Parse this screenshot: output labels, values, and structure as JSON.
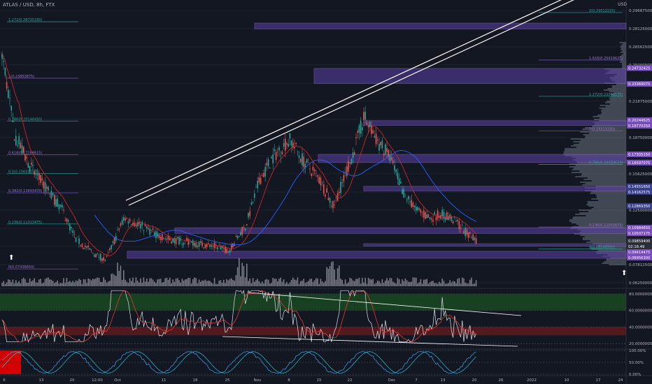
{
  "header": {
    "symbol": "ATLAS / USD, 8h, FTX",
    "currency": "USD"
  },
  "price_axis": {
    "ticks": [
      "0.29687500",
      "0.28125000",
      "0.26562500",
      "0.25000000",
      "0.23437500",
      "0.21875000",
      "0.20312500",
      "0.18750000",
      "0.17187500",
      "0.15625000",
      "0.14062500",
      "0.12500000",
      "0.10937500",
      "0.09375000",
      "0.07812500",
      "0.06250000"
    ],
    "labels": [
      {
        "text": "0.24732425",
        "color": "#7b4fbf"
      },
      {
        "text": "0.23369075",
        "color": "#7b4fbf"
      },
      {
        "text": "0.20244625",
        "color": "#7b4fbf"
      },
      {
        "text": "0.19770250",
        "color": "#7b4fbf"
      },
      {
        "text": "0.17305150",
        "color": "#7b4fbf"
      },
      {
        "text": "0.16597075",
        "color": "#7b4fbf"
      },
      {
        "text": "0.14551650",
        "color": "#3a3f8f"
      },
      {
        "text": "0.14162575",
        "color": "#3a3f8f"
      },
      {
        "text": "0.12869350",
        "color": "#3a3f8f"
      },
      {
        "text": "0.10984650",
        "color": "#7b4fbf"
      },
      {
        "text": "0.10507175",
        "color": "#7b4fbf"
      },
      {
        "text": "0.09859400",
        "color": "#2a2e39"
      },
      {
        "text": "02:16:49",
        "color": "#2a2e39"
      },
      {
        "text": "0.09414475",
        "color": "#7b4fbf"
      },
      {
        "text": "0.08956300",
        "color": "#7b4fbf"
      }
    ]
  },
  "fib_labels": [
    "1.272(0.28725180)",
    "1(0.23863875)",
    "0.786(0.20148450)",
    "0.618(0.17288615)",
    "0.5(0.15650250)",
    "0.382(0.13993470)",
    "0.236(0.11313475)",
    "0(0.07436650)",
    "2(0.29512225)",
    "1.618(0.25419625)",
    "1.272(0.22298175)",
    "1(0.19313250)",
    "0.786(0.16433630)",
    "0.236(0.11050875)",
    "0(0.09148950)"
  ],
  "rsi_axis": {
    "ticks": [
      "80.00000000",
      "60.00000000",
      "40.00000000",
      "20.00000000"
    ]
  },
  "stoch_axis": {
    "ticks": [
      "100.00%",
      "50.00%",
      "0.00%"
    ]
  },
  "time_axis": {
    "ticks": [
      "6",
      "13",
      "20",
      "12:00",
      "Oct",
      "11",
      "18",
      "25",
      "Nov",
      "8",
      "15",
      "22",
      "Dec",
      "7",
      "13",
      "20",
      "26",
      "2022",
      "10",
      "17",
      "24"
    ]
  },
  "colors": {
    "background": "#131722",
    "bull": "#26a69a",
    "bear": "#ef5350",
    "zone": "#5b3fa8",
    "zone_border": "#9575cd",
    "rsi": "#e0e3eb",
    "rsi_ma": "#e53935",
    "stoch_k": "#42a5f5",
    "stoch_d": "#26c6da",
    "ma_red": "#c62828",
    "ma_blue": "#2962ff",
    "axis_text": "#b2b5be",
    "grid": "#1e222d"
  },
  "chart_data": {
    "type": "candlestick",
    "symbol": "ATLAS / USD",
    "interval": "8h",
    "exchange": "FTX",
    "ylim": [
      0.0625,
      0.296875
    ],
    "ohlc_close_points": [
      [
        "Sep 3",
        0.265
      ],
      [
        "Sep 6",
        0.19
      ],
      [
        "Sep 10",
        0.16
      ],
      [
        "Sep 13",
        0.145
      ],
      [
        "Sep 17",
        0.125
      ],
      [
        "Sep 20",
        0.1
      ],
      [
        "Sep 24",
        0.088
      ],
      [
        "Sep 27",
        0.082
      ],
      [
        "Oct 1",
        0.118
      ],
      [
        "Oct 4",
        0.114
      ],
      [
        "Oct 8",
        0.105
      ],
      [
        "Oct 11",
        0.1
      ],
      [
        "Oct 15",
        0.098
      ],
      [
        "Oct 18",
        0.096
      ],
      [
        "Oct 22",
        0.094
      ],
      [
        "Oct 25",
        0.09
      ],
      [
        "Oct 29",
        0.112
      ],
      [
        "Nov 1",
        0.15
      ],
      [
        "Nov 4",
        0.17
      ],
      [
        "Nov 8",
        0.186
      ],
      [
        "Nov 11",
        0.168
      ],
      [
        "Nov 15",
        0.15
      ],
      [
        "Nov 18",
        0.128
      ],
      [
        "Nov 22",
        0.168
      ],
      [
        "Nov 25",
        0.205
      ],
      [
        "Nov 28",
        0.185
      ],
      [
        "Dec 1",
        0.17
      ],
      [
        "Dec 4",
        0.14
      ],
      [
        "Dec 7",
        0.125
      ],
      [
        "Dec 10",
        0.118
      ],
      [
        "Dec 13",
        0.122
      ],
      [
        "Dec 16",
        0.115
      ],
      [
        "Dec 19",
        0.103
      ],
      [
        "Dec 21",
        0.0986
      ]
    ],
    "last_price": 0.098594,
    "zones": [
      [
        0.281,
        0.286
      ],
      [
        0.234,
        0.247
      ],
      [
        0.198,
        0.202
      ],
      [
        0.166,
        0.173
      ],
      [
        0.1416,
        0.1455
      ],
      [
        0.105,
        0.1098
      ],
      [
        0.0941,
        0.0961
      ],
      [
        0.0836,
        0.0896
      ]
    ],
    "rsi": {
      "ylim": [
        15,
        85
      ],
      "bands": [
        [
          60,
          80
        ],
        [
          30,
          40
        ]
      ]
    },
    "stoch_rsi": {
      "ylim": [
        0,
        100
      ]
    }
  }
}
